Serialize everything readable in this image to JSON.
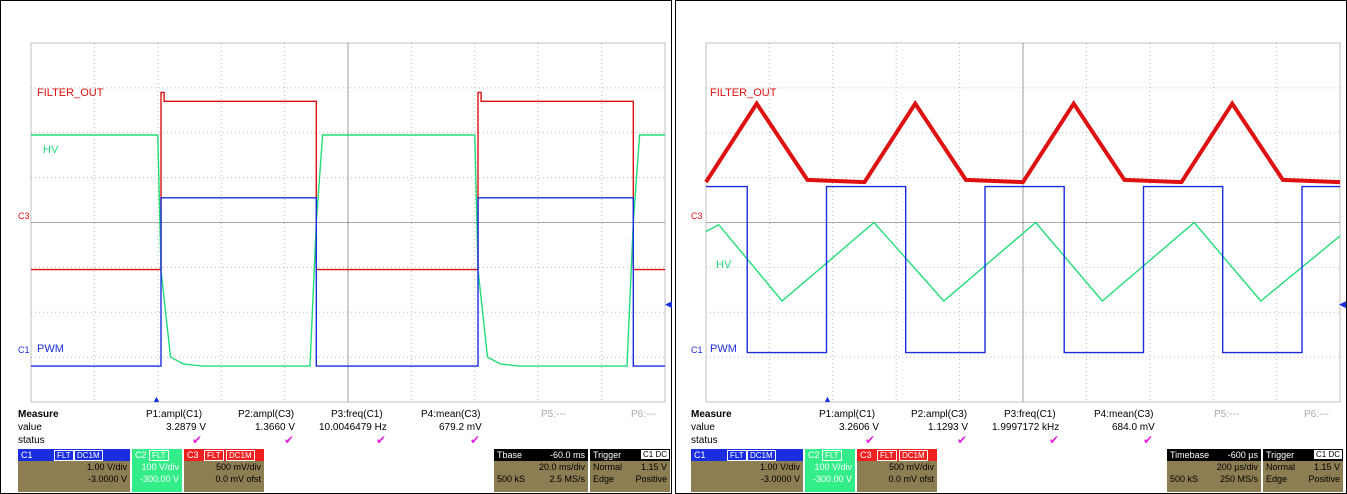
{
  "scopes": [
    {
      "labels": {
        "filter": "FILTER_OUT",
        "hv": "HV",
        "pwm": "PWM",
        "c3": "C3",
        "c1": "C1"
      },
      "measure": {
        "header": "Measure",
        "row_value": "value",
        "row_status": "status",
        "cols": [
          {
            "name": "P1:ampl(C1)",
            "value": "3.2879 V"
          },
          {
            "name": "P2:ampl(C3)",
            "value": "1.3660 V"
          },
          {
            "name": "P3:freq(C1)",
            "value": "10.0046479 Hz"
          },
          {
            "name": "P4:mean(C3)",
            "value": "679.2 mV"
          },
          {
            "name": "P5:---",
            "value": ""
          },
          {
            "name": "P6:---",
            "value": ""
          }
        ]
      },
      "channels": [
        {
          "name": "C1",
          "tag": "FLT",
          "coupling": "DC1M",
          "scale": "1.00 V/div",
          "offset": "-3.0000 V"
        },
        {
          "name": "C2",
          "tag": "FLT",
          "coupling": "DC1M",
          "scale": "100 V/div",
          "offset": "-300.00 V"
        },
        {
          "name": "C3",
          "tag": "FLT",
          "coupling": "DC1M",
          "scale": "500 mV/div",
          "offset": "0.0 mV ofst"
        }
      ],
      "timebase": {
        "label": "Tbase",
        "delay": "-60.0 ms",
        "scale": "20.0 ms/div",
        "samples": "500 kS",
        "rate": "2.5 MS/s"
      },
      "trigger": {
        "label": "Trigger",
        "source": "C1",
        "coupling": "DC",
        "mode": "Normal",
        "level": "1.15 V",
        "type": "Edge",
        "slope": "Positive"
      }
    },
    {
      "labels": {
        "filter": "FILTER_OUT",
        "hv": "HV",
        "pwm": "PWM",
        "c3": "C3",
        "c1": "C1"
      },
      "measure": {
        "header": "Measure",
        "row_value": "value",
        "row_status": "status",
        "cols": [
          {
            "name": "P1:ampl(C1)",
            "value": "3.2606 V"
          },
          {
            "name": "P2:ampl(C3)",
            "value": "1.1293 V"
          },
          {
            "name": "P3:freq(C1)",
            "value": "1.9997172 kHz"
          },
          {
            "name": "P4:mean(C3)",
            "value": "684.0 mV"
          },
          {
            "name": "P5:---",
            "value": ""
          },
          {
            "name": "P6:---",
            "value": ""
          }
        ]
      },
      "channels": [
        {
          "name": "C1",
          "tag": "FLT",
          "coupling": "DC1M",
          "scale": "1.00 V/div",
          "offset": "-3.0000 V"
        },
        {
          "name": "C2",
          "tag": "FLT",
          "coupling": "DC1M",
          "scale": "100 V/div",
          "offset": "-300.00 V"
        },
        {
          "name": "C3",
          "tag": "FLT",
          "coupling": "DC1M",
          "scale": "500 mV/div",
          "offset": "0.0 mV ofst"
        }
      ],
      "timebase": {
        "label": "Timebase",
        "delay": "-600 µs",
        "scale": "200 µs/div",
        "samples": "500 kS",
        "rate": "250 MS/s"
      },
      "trigger": {
        "label": "Trigger",
        "source": "C1",
        "coupling": "DC",
        "mode": "Normal",
        "level": "1.15 V",
        "type": "Edge",
        "slope": "Positive"
      }
    }
  ],
  "colors": {
    "pwm": "#1a2ee0",
    "hv": "#22dd77",
    "filter": "#dd1111",
    "grid": "#bbbbbb",
    "axis": "#666666"
  },
  "chart_data": [
    {
      "type": "line",
      "x_unit": "div",
      "y_unit": "div",
      "xlim": [
        0,
        10
      ],
      "ylim": [
        0,
        8
      ],
      "grid": true,
      "series": [
        {
          "name": "FILTER_OUT",
          "x": [
            0,
            2.05,
            2.05,
            2.1,
            2.1,
            4.5,
            4.5,
            7.05,
            7.05,
            7.1,
            7.1,
            9.5,
            9.5,
            10
          ],
          "y": [
            2.95,
            2.95,
            6.9,
            6.9,
            6.7,
            6.7,
            2.95,
            2.95,
            6.9,
            6.9,
            6.7,
            6.7,
            2.95,
            2.95
          ]
        },
        {
          "name": "HV",
          "x": [
            0,
            2.0,
            2.05,
            2.2,
            2.4,
            2.7,
            3.2,
            4.4,
            4.5,
            4.6,
            7.0,
            7.05,
            7.2,
            7.4,
            7.7,
            8.2,
            9.4,
            9.5,
            9.6,
            10
          ],
          "y": [
            5.95,
            5.95,
            2.95,
            1.0,
            0.85,
            0.8,
            0.8,
            0.8,
            4.0,
            5.95,
            5.95,
            2.95,
            1.0,
            0.85,
            0.8,
            0.8,
            0.8,
            4.0,
            5.95,
            5.95
          ]
        },
        {
          "name": "PWM",
          "x": [
            0,
            2.05,
            2.05,
            4.5,
            4.5,
            7.05,
            7.05,
            9.5,
            9.5,
            10
          ],
          "y": [
            0.8,
            0.8,
            4.55,
            4.55,
            0.8,
            0.8,
            4.55,
            4.55,
            0.8,
            0.8
          ]
        }
      ]
    },
    {
      "type": "line",
      "x_unit": "div",
      "y_unit": "div",
      "xlim": [
        0,
        10
      ],
      "ylim": [
        0,
        8
      ],
      "grid": true,
      "series": [
        {
          "name": "FILTER_OUT",
          "x": [
            0,
            0.8,
            1.6,
            2.5,
            3.3,
            4.1,
            5.0,
            5.8,
            6.6,
            7.5,
            8.3,
            9.1,
            10
          ],
          "y": [
            4.9,
            6.65,
            4.95,
            4.9,
            6.65,
            4.95,
            4.9,
            6.65,
            4.95,
            4.9,
            6.65,
            4.95,
            4.9
          ]
        },
        {
          "name": "HV",
          "x": [
            0,
            0.2,
            1.2,
            2.65,
            3.75,
            5.2,
            6.25,
            7.7,
            8.75,
            10
          ],
          "y": [
            3.8,
            3.95,
            2.25,
            4.0,
            2.25,
            4.0,
            2.25,
            4.0,
            2.25,
            3.7
          ]
        },
        {
          "name": "PWM",
          "x": [
            0,
            0.65,
            0.65,
            1.9,
            1.9,
            3.15,
            3.15,
            4.4,
            4.4,
            5.65,
            5.65,
            6.9,
            6.9,
            8.15,
            8.15,
            9.4,
            9.4,
            10
          ],
          "y": [
            4.8,
            4.8,
            1.1,
            1.1,
            4.8,
            4.8,
            1.1,
            1.1,
            4.8,
            4.8,
            1.1,
            1.1,
            4.8,
            4.8,
            1.1,
            1.1,
            4.8,
            4.8
          ]
        }
      ]
    }
  ]
}
